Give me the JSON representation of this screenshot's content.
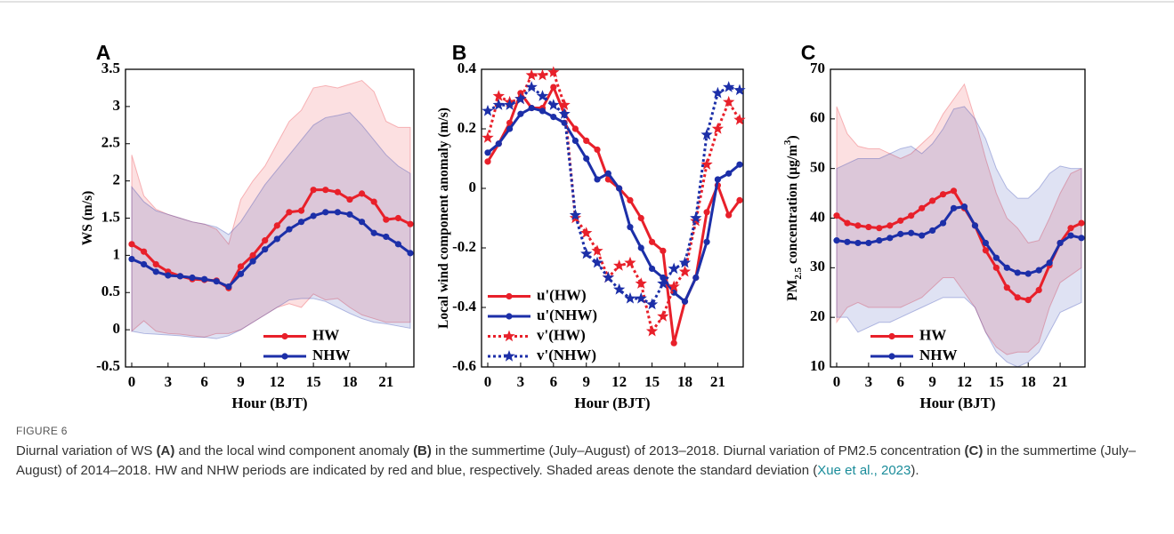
{
  "chart_data": [
    {
      "type": "line",
      "panel": "A",
      "xlabel": "Hour (BJT)",
      "ylabel": [
        "WS (m/s)"
      ],
      "x": [
        0,
        1,
        2,
        3,
        4,
        5,
        6,
        7,
        8,
        9,
        10,
        11,
        12,
        13,
        14,
        15,
        16,
        17,
        18,
        19,
        20,
        21,
        22,
        23
      ],
      "xlim": [
        0,
        23
      ],
      "xticks": [
        0,
        3,
        6,
        9,
        12,
        15,
        18,
        21
      ],
      "ylim": [
        -0.5,
        3.5
      ],
      "yticks": [
        -0.5,
        0,
        0.5,
        1,
        1.5,
        2,
        2.5,
        3,
        3.5
      ],
      "legend": "lower right",
      "series": [
        {
          "name": "HW",
          "color": "#e8202a",
          "linestyle": "solid",
          "marker": "circle",
          "values": [
            1.15,
            1.05,
            0.88,
            0.78,
            0.72,
            0.68,
            0.67,
            0.66,
            0.56,
            0.85,
            1.0,
            1.2,
            1.4,
            1.58,
            1.6,
            1.88,
            1.88,
            1.85,
            1.75,
            1.83,
            1.72,
            1.48,
            1.5,
            1.42
          ],
          "upper": [
            2.35,
            1.8,
            1.62,
            1.55,
            1.5,
            1.45,
            1.42,
            1.35,
            1.15,
            1.75,
            2.0,
            2.2,
            2.5,
            2.8,
            2.95,
            3.25,
            3.28,
            3.25,
            3.3,
            3.35,
            3.2,
            2.8,
            2.72,
            2.72
          ],
          "lower": [
            -0.02,
            0.12,
            -0.02,
            -0.05,
            -0.06,
            -0.08,
            -0.1,
            -0.05,
            -0.05,
            0.0,
            0.1,
            0.2,
            0.3,
            0.35,
            0.3,
            0.48,
            0.4,
            0.42,
            0.3,
            0.2,
            0.15,
            0.1,
            0.1,
            0.1
          ]
        },
        {
          "name": "NHW",
          "color": "#1c2fa8",
          "linestyle": "solid",
          "marker": "circle",
          "values": [
            0.95,
            0.88,
            0.78,
            0.73,
            0.72,
            0.7,
            0.68,
            0.65,
            0.58,
            0.75,
            0.92,
            1.08,
            1.22,
            1.35,
            1.45,
            1.53,
            1.58,
            1.58,
            1.55,
            1.45,
            1.3,
            1.25,
            1.15,
            1.03
          ],
          "upper": [
            1.92,
            1.72,
            1.6,
            1.55,
            1.5,
            1.45,
            1.42,
            1.38,
            1.28,
            1.45,
            1.7,
            1.95,
            2.15,
            2.35,
            2.55,
            2.75,
            2.85,
            2.88,
            2.92,
            2.75,
            2.55,
            2.35,
            2.2,
            2.1
          ],
          "lower": [
            -0.02,
            -0.05,
            -0.06,
            -0.07,
            -0.08,
            -0.1,
            -0.1,
            -0.12,
            -0.08,
            0.0,
            0.1,
            0.2,
            0.3,
            0.4,
            0.42,
            0.42,
            0.38,
            0.3,
            0.22,
            0.15,
            0.1,
            0.08,
            0.05,
            0.02
          ]
        }
      ]
    },
    {
      "type": "line",
      "panel": "B",
      "xlabel": "Hour (BJT)",
      "ylabel": [
        "Local wind component anomaly (m/s)"
      ],
      "x": [
        0,
        1,
        2,
        3,
        4,
        5,
        6,
        7,
        8,
        9,
        10,
        11,
        12,
        13,
        14,
        15,
        16,
        17,
        18,
        19,
        20,
        21,
        22,
        23
      ],
      "xlim": [
        0,
        23
      ],
      "xticks": [
        0,
        3,
        6,
        9,
        12,
        15,
        18,
        21
      ],
      "ylim": [
        -0.6,
        0.4
      ],
      "yticks": [
        -0.6,
        -0.4,
        -0.2,
        0,
        0.2,
        0.4
      ],
      "legend": "lower left",
      "series": [
        {
          "name": "u'(HW)",
          "color": "#e8202a",
          "linestyle": "solid",
          "marker": "circle",
          "values": [
            0.09,
            0.15,
            0.22,
            0.32,
            0.27,
            0.27,
            0.34,
            0.25,
            0.2,
            0.16,
            0.13,
            0.03,
            0.0,
            -0.04,
            -0.1,
            -0.18,
            -0.21,
            -0.52,
            -0.38,
            -0.3,
            -0.08,
            0.01,
            -0.09,
            -0.04
          ]
        },
        {
          "name": "u'(NHW)",
          "color": "#1c2fa8",
          "linestyle": "solid",
          "marker": "circle",
          "values": [
            0.12,
            0.15,
            0.2,
            0.25,
            0.27,
            0.26,
            0.24,
            0.22,
            0.16,
            0.1,
            0.03,
            0.05,
            0.0,
            -0.13,
            -0.2,
            -0.27,
            -0.3,
            -0.35,
            -0.38,
            -0.3,
            -0.18,
            0.03,
            0.05,
            0.08
          ]
        },
        {
          "name": "v'(HW)",
          "color": "#e8202a",
          "linestyle": "dotted",
          "marker": "star",
          "values": [
            0.17,
            0.31,
            0.29,
            0.3,
            0.38,
            0.38,
            0.39,
            0.28,
            -0.1,
            -0.15,
            -0.21,
            -0.3,
            -0.26,
            -0.25,
            -0.32,
            -0.48,
            -0.43,
            -0.33,
            -0.28,
            -0.11,
            0.08,
            0.2,
            0.29,
            0.23
          ]
        },
        {
          "name": "v'(NHW)",
          "color": "#1c2fa8",
          "linestyle": "dotted",
          "marker": "star",
          "values": [
            0.26,
            0.28,
            0.28,
            0.3,
            0.34,
            0.31,
            0.28,
            0.25,
            -0.09,
            -0.22,
            -0.25,
            -0.3,
            -0.34,
            -0.37,
            -0.37,
            -0.39,
            -0.32,
            -0.27,
            -0.25,
            -0.1,
            0.18,
            0.32,
            0.34,
            0.33
          ]
        }
      ]
    },
    {
      "type": "line",
      "panel": "C",
      "xlabel": "Hour (BJT)",
      "ylabel": [
        "PM",
        "2.5",
        " concentration (μg/m",
        "3",
        ")"
      ],
      "x": [
        0,
        1,
        2,
        3,
        4,
        5,
        6,
        7,
        8,
        9,
        10,
        11,
        12,
        13,
        14,
        15,
        16,
        17,
        18,
        19,
        20,
        21,
        22,
        23
      ],
      "xlim": [
        0,
        23
      ],
      "xticks": [
        0,
        3,
        6,
        9,
        12,
        15,
        18,
        21
      ],
      "ylim": [
        10,
        70
      ],
      "yticks": [
        10,
        20,
        30,
        40,
        50,
        60,
        70
      ],
      "legend": "lower left",
      "series": [
        {
          "name": "HW",
          "color": "#e8202a",
          "linestyle": "solid",
          "marker": "circle",
          "values": [
            40.5,
            39,
            38.5,
            38.2,
            38,
            38.5,
            39.5,
            40.5,
            42,
            43.5,
            44.8,
            45.5,
            42,
            38.5,
            33.5,
            30,
            26,
            24,
            23.5,
            25.5,
            30.5,
            35,
            38,
            39
          ],
          "upper": [
            62.5,
            57,
            54.5,
            54,
            54,
            53,
            52,
            53,
            55,
            57,
            61,
            64,
            67,
            60,
            52,
            45,
            40,
            38,
            35,
            35.5,
            40,
            45,
            49,
            50
          ],
          "lower": [
            19,
            22,
            23,
            22,
            22,
            22,
            22,
            23,
            24,
            26,
            28,
            28,
            25,
            22,
            17,
            14,
            12.5,
            13,
            13,
            15,
            22,
            27,
            28.5,
            30
          ]
        },
        {
          "name": "NHW",
          "color": "#1c2fa8",
          "linestyle": "solid",
          "marker": "circle",
          "values": [
            35.5,
            35.2,
            35,
            35,
            35.5,
            36,
            36.8,
            37,
            36.5,
            37.5,
            39,
            42,
            42.3,
            38.5,
            35,
            32,
            30,
            29,
            28.8,
            29.5,
            31,
            35,
            36.5,
            36
          ],
          "upper": [
            50,
            51,
            52,
            52,
            52,
            53,
            54,
            54.5,
            53,
            55,
            58,
            62,
            62.5,
            60,
            56,
            50,
            46,
            44,
            44,
            46,
            49,
            50.5,
            50,
            50
          ],
          "lower": [
            20,
            20,
            17,
            18,
            19,
            19,
            20,
            21,
            22,
            23,
            24,
            24,
            24,
            22,
            17,
            13,
            11,
            10,
            11,
            13,
            17,
            21,
            22,
            23
          ]
        }
      ]
    }
  ],
  "caption": {
    "label": "FIGURE 6",
    "text": [
      "Diurnal variation of WS ",
      "(A)",
      " and the local wind component anomaly ",
      "(B)",
      " in the summertime (July–August) of 2013–2018. Diurnal variation of PM2.5 concentration ",
      "(C)",
      " in the summertime (July–August) of 2014–2018. HW and NHW periods are indicated by red and blue, respectively. Shaded areas denote the standard deviation (",
      "Xue et al., 2023",
      ")."
    ]
  }
}
